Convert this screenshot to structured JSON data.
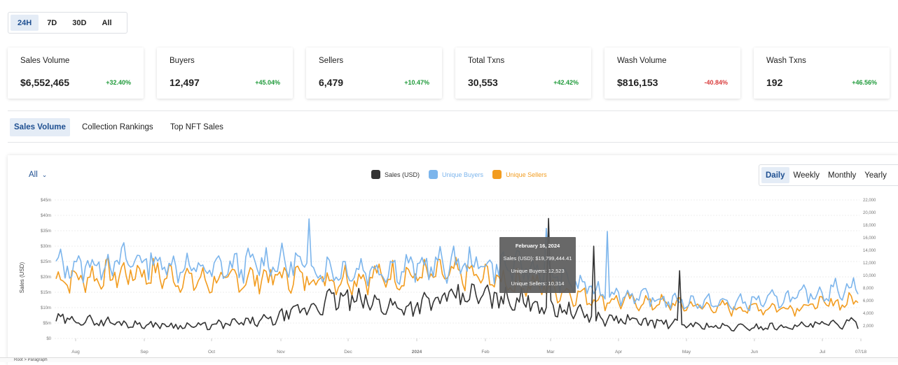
{
  "time_range": {
    "options": [
      "24H",
      "7D",
      "30D",
      "All"
    ],
    "active": "24H"
  },
  "stats": [
    {
      "label": "Sales Volume",
      "value": "$6,552,465",
      "change": "+32.40%",
      "direction": "up"
    },
    {
      "label": "Buyers",
      "value": "12,497",
      "change": "+45.04%",
      "direction": "up"
    },
    {
      "label": "Sellers",
      "value": "6,479",
      "change": "+10.47%",
      "direction": "up"
    },
    {
      "label": "Total Txns",
      "value": "30,553",
      "change": "+42.42%",
      "direction": "up"
    },
    {
      "label": "Wash Volume",
      "value": "$816,153",
      "change": "-40.84%",
      "direction": "down"
    },
    {
      "label": "Wash Txns",
      "value": "192",
      "change": "+46.56%",
      "direction": "up"
    }
  ],
  "tabs": [
    "Sales Volume",
    "Collection Rankings",
    "Top NFT Sales"
  ],
  "active_tab": "Sales Volume",
  "chart_filter": {
    "label": "All"
  },
  "period_options": [
    "Daily",
    "Weekly",
    "Monthly",
    "Yearly"
  ],
  "active_period": "Daily",
  "legend": [
    {
      "name": "Sales (USD)",
      "color": "#333333"
    },
    {
      "name": "Unique Buyers",
      "color": "#7cb5ec"
    },
    {
      "name": "Unique Sellers",
      "color": "#f29c1f"
    }
  ],
  "tooltip": {
    "date": "February 16, 2024",
    "sales": "Sales (USD): $19,799,444.41",
    "buyers": "Unique Buyers: 12,523",
    "sellers": "Unique Sellers: 10,314"
  },
  "status_bar": {
    "text": "Root  >  Paragraph"
  },
  "chart_data": {
    "type": "line",
    "title": "",
    "ylabel": "Sales (USD)",
    "ylim": [
      0,
      45000000
    ],
    "y2lim": [
      0,
      22000
    ],
    "y_ticks": [
      "$0",
      "$5m",
      "$10m",
      "$15m",
      "$20m",
      "$25m",
      "$30m",
      "$35m",
      "$40m",
      "$45m"
    ],
    "y2_ticks": [
      "2,000",
      "4,000",
      "6,000",
      "8,000",
      "10,000",
      "12,000",
      "14,000",
      "16,000",
      "18,000",
      "20,000",
      "22,000"
    ],
    "x_ticks": [
      "Aug",
      "Sep",
      "Oct",
      "Nov",
      "Dec",
      "2024",
      "Feb",
      "Mar",
      "Apr",
      "May",
      "Jun",
      "Jul",
      "07/18"
    ],
    "x": [
      "Aug",
      "Sep",
      "Oct",
      "Nov",
      "Dec",
      "2024",
      "Feb",
      "Mar",
      "Apr",
      "May",
      "Jun",
      "Jul",
      "07/18"
    ],
    "series": [
      {
        "name": "Sales (USD)",
        "axis": "left",
        "values": [
          6000000,
          4500000,
          4000000,
          6000000,
          13000000,
          10000000,
          14000000,
          12000000,
          6500000,
          5000000,
          3500000,
          4000000,
          5000000
        ]
      },
      {
        "name": "Unique Buyers",
        "axis": "right",
        "values": [
          11500,
          12500,
          10800,
          12200,
          10800,
          11200,
          12000,
          11000,
          7500,
          6000,
          5500,
          6500,
          8500
        ]
      },
      {
        "name": "Unique Sellers",
        "axis": "right",
        "values": [
          9500,
          10500,
          9000,
          9800,
          9500,
          10000,
          10000,
          8500,
          6200,
          5500,
          4800,
          5000,
          6000
        ]
      }
    ],
    "grid": true,
    "legend_position": "top-center"
  }
}
